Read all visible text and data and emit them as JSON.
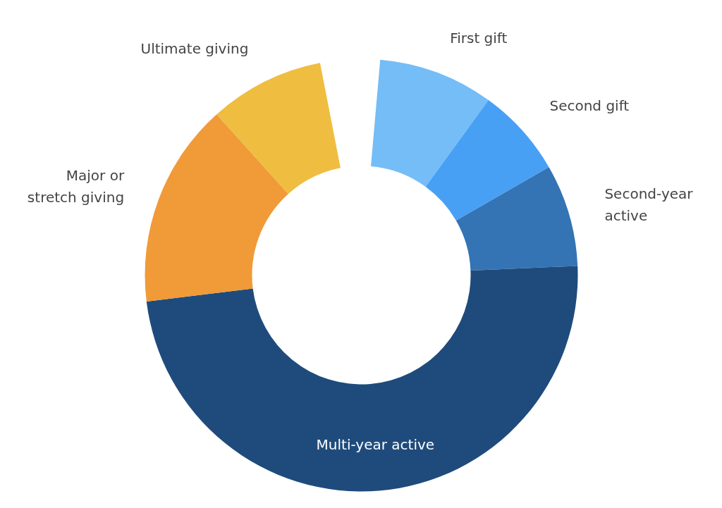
{
  "chart_data": {
    "type": "donut",
    "categories": [
      "First gift",
      "Second gift",
      "Second-year\nactive",
      "Multi-year active",
      "Major or\nstretch giving",
      "Ultimate giving"
    ],
    "values": [
      9,
      7,
      8,
      51,
      16,
      9
    ],
    "colors": [
      "#74bdf7",
      "#48a0f5",
      "#3474b4",
      "#1f4b7c",
      "#f09a38",
      "#efbd40"
    ]
  }
}
